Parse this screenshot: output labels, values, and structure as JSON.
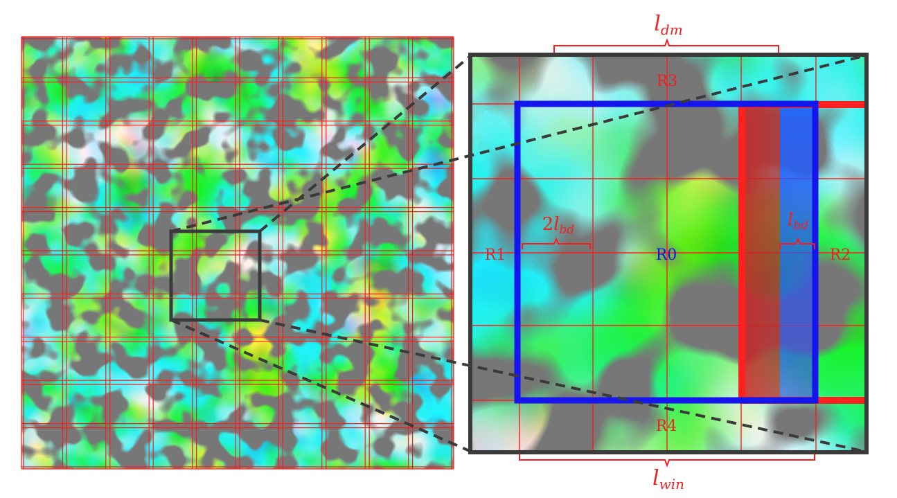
{
  "colors": {
    "grid": "#ff1a1a",
    "solid": "#777777",
    "frame": "#3a3a3a",
    "window": "#1515ee",
    "boundary_red": "#ff2020",
    "boundary_blue": "#1e66ff",
    "field_low": "#28d8ff",
    "field_mid": "#b8f060",
    "field_high": "#ff3a10"
  },
  "labels": {
    "r0": "R0",
    "r1": "R1",
    "r2": "R2",
    "r3": "R3",
    "r4": "R4"
  },
  "dimensions": {
    "l_dm": {
      "base": "l",
      "sub": "dm"
    },
    "l_win": {
      "base": "l",
      "sub": "win"
    },
    "l_bd": {
      "base": "l",
      "sub": "bd"
    },
    "two_l_bd": {
      "coef": "2",
      "base": "l",
      "sub": "bd"
    }
  }
}
